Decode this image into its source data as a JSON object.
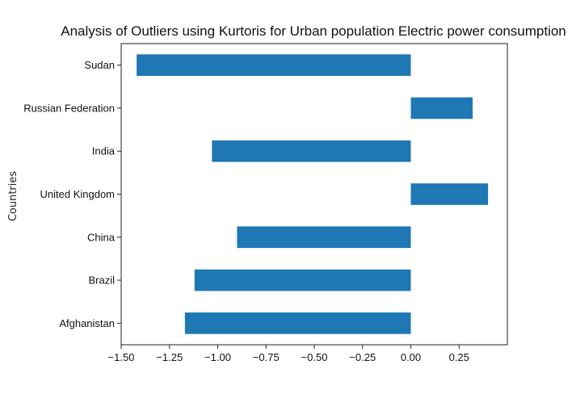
{
  "chart_data": {
    "type": "bar",
    "orientation": "horizontal",
    "title": "Analysis of Outliers using Kurtoris for Urban population Electric power consumption",
    "xlabel": "",
    "ylabel": "Countries",
    "categories": [
      "Afghanistan",
      "Brazil",
      "China",
      "United Kingdom",
      "India",
      "Russian Federation",
      "Sudan"
    ],
    "values": [
      -1.17,
      -1.12,
      -0.9,
      0.4,
      -1.03,
      0.32,
      -1.42
    ],
    "xlim": [
      -1.5,
      0.5
    ],
    "xticks": [
      -1.5,
      -1.25,
      -1.0,
      -0.75,
      -0.5,
      -0.25,
      0.0,
      0.25
    ],
    "xtick_labels": [
      "−1.50",
      "−1.25",
      "−1.00",
      "−0.75",
      "−0.50",
      "−0.25",
      "0.00",
      "0.25"
    ],
    "bar_color": "#1f77b4",
    "grid": false,
    "legend": "none"
  }
}
